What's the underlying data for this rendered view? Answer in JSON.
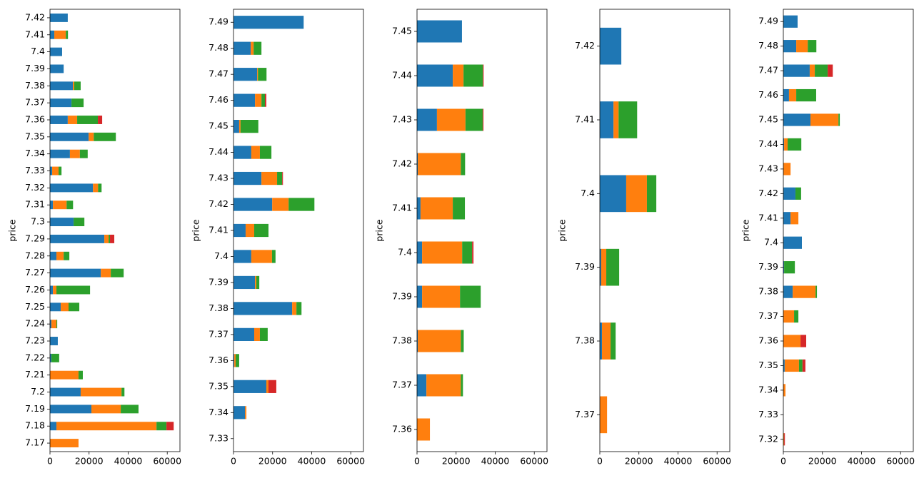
{
  "chart_data": [
    {
      "type": "bar",
      "orientation": "horizontal",
      "stacked": true,
      "ylabel": "price",
      "categories": [
        "7.42",
        "7.41",
        "7.4",
        "7.39",
        "7.38",
        "7.37",
        "7.36",
        "7.35",
        "7.34",
        "7.33",
        "7.32",
        "7.31",
        "7.3",
        "7.29",
        "7.28",
        "7.27",
        "7.26",
        "7.25",
        "7.24",
        "7.23",
        "7.22",
        "7.21",
        "7.2",
        "7.19",
        "7.18",
        "7.17"
      ],
      "series": [
        {
          "color": "#1f77b4",
          "values": [
            9100,
            2200,
            6200,
            7000,
            11700,
            11000,
            9100,
            19800,
            10200,
            1100,
            22000,
            1500,
            12100,
            27800,
            3300,
            26000,
            1500,
            5500,
            700,
            4000,
            700,
            0,
            15700,
            21200,
            3300,
            0
          ]
        },
        {
          "color": "#ff7f0e",
          "values": [
            0,
            5900,
            0,
            0,
            700,
            0,
            4800,
            2600,
            5100,
            3300,
            2600,
            7000,
            0,
            2200,
            3700,
            5100,
            1800,
            4000,
            2600,
            0,
            0,
            14600,
            20900,
            15000,
            51200,
            14600
          ]
        },
        {
          "color": "#2ca02c",
          "values": [
            0,
            1100,
            0,
            0,
            3300,
            6200,
            10600,
            11300,
            4000,
            1500,
            1800,
            3300,
            5500,
            700,
            2900,
            6600,
            17200,
            5500,
            400,
            0,
            4000,
            2200,
            1500,
            9100,
            5100,
            0
          ]
        },
        {
          "color": "#d62728",
          "values": [
            0,
            0,
            0,
            0,
            0,
            0,
            2200,
            0,
            0,
            0,
            0,
            0,
            0,
            2200,
            0,
            0,
            0,
            0,
            0,
            0,
            0,
            0,
            0,
            0,
            3700,
            0
          ]
        }
      ],
      "xlim": [
        0,
        66500
      ],
      "xticks": [
        0,
        20000,
        40000,
        60000
      ]
    },
    {
      "type": "bar",
      "orientation": "horizontal",
      "stacked": true,
      "ylabel": "price",
      "categories": [
        "7.49",
        "7.48",
        "7.47",
        "7.46",
        "7.45",
        "7.44",
        "7.43",
        "7.42",
        "7.41",
        "7.4",
        "7.39",
        "7.38",
        "7.37",
        "7.36",
        "7.35",
        "7.34",
        "7.33"
      ],
      "series": [
        {
          "color": "#1f77b4",
          "values": [
            35900,
            8800,
            12100,
            11000,
            2900,
            9100,
            14300,
            19800,
            6200,
            9100,
            11000,
            30000,
            10600,
            400,
            16800,
            5900,
            0
          ]
        },
        {
          "color": "#ff7f0e",
          "values": [
            0,
            1500,
            400,
            3300,
            700,
            4400,
            8000,
            8400,
            4400,
            10600,
            700,
            2200,
            2900,
            700,
            1100,
            700,
            0
          ]
        },
        {
          "color": "#2ca02c",
          "values": [
            0,
            4000,
            4400,
            1800,
            9100,
            5900,
            2600,
            13200,
            7300,
            1800,
            1500,
            2600,
            4000,
            1800,
            0,
            0,
            0
          ]
        },
        {
          "color": "#d62728",
          "values": [
            0,
            0,
            0,
            700,
            0,
            0,
            400,
            0,
            0,
            0,
            0,
            0,
            0,
            0,
            4000,
            0,
            0
          ]
        }
      ],
      "xlim": [
        0,
        66500
      ],
      "xticks": [
        0,
        20000,
        40000,
        60000
      ]
    },
    {
      "type": "bar",
      "orientation": "horizontal",
      "stacked": true,
      "ylabel": "price",
      "categories": [
        "7.45",
        "7.44",
        "7.43",
        "7.42",
        "7.41",
        "7.4",
        "7.39",
        "7.38",
        "7.37",
        "7.36"
      ],
      "series": [
        {
          "color": "#1f77b4",
          "values": [
            23000,
            18300,
            10200,
            400,
            1800,
            2600,
            2600,
            400,
            4800,
            0
          ]
        },
        {
          "color": "#ff7f0e",
          "values": [
            0,
            5500,
            14600,
            22000,
            16500,
            20500,
            19400,
            22000,
            17600,
            6600
          ]
        },
        {
          "color": "#2ca02c",
          "values": [
            0,
            9900,
            8800,
            2200,
            6200,
            5100,
            10600,
            1500,
            1100,
            0
          ]
        },
        {
          "color": "#d62728",
          "values": [
            0,
            400,
            400,
            0,
            0,
            700,
            0,
            0,
            0,
            0
          ]
        }
      ],
      "xlim": [
        0,
        66500
      ],
      "xticks": [
        0,
        20000,
        40000,
        60000
      ]
    },
    {
      "type": "bar",
      "orientation": "horizontal",
      "stacked": true,
      "ylabel": "price",
      "categories": [
        "7.42",
        "7.41",
        "7.4",
        "7.39",
        "7.38",
        "7.37"
      ],
      "series": [
        {
          "color": "#1f77b4",
          "values": [
            11000,
            7000,
            13500,
            700,
            1100,
            0
          ]
        },
        {
          "color": "#ff7f0e",
          "values": [
            0,
            2600,
            10600,
            2600,
            4400,
            3700
          ]
        },
        {
          "color": "#2ca02c",
          "values": [
            0,
            9500,
            4800,
            6600,
            2600,
            0
          ]
        },
        {
          "color": "#d62728",
          "values": [
            0,
            0,
            0,
            0,
            0,
            0
          ]
        }
      ],
      "xlim": [
        0,
        66500
      ],
      "xticks": [
        0,
        20000,
        40000,
        60000
      ]
    },
    {
      "type": "bar",
      "orientation": "horizontal",
      "stacked": true,
      "ylabel": "price",
      "categories": [
        "7.49",
        "7.48",
        "7.47",
        "7.46",
        "7.45",
        "7.44",
        "7.43",
        "7.42",
        "7.41",
        "7.4",
        "7.39",
        "7.38",
        "7.37",
        "7.36",
        "7.35",
        "7.34",
        "7.33",
        "7.32"
      ],
      "series": [
        {
          "color": "#1f77b4",
          "values": [
            7300,
            6600,
            13500,
            2900,
            13900,
            400,
            0,
            6200,
            3700,
            9500,
            400,
            4800,
            0,
            0,
            700,
            0,
            0,
            0
          ]
        },
        {
          "color": "#ff7f0e",
          "values": [
            0,
            5900,
            2600,
            3700,
            14300,
            1800,
            3700,
            0,
            4000,
            0,
            0,
            11700,
            5500,
            8800,
            7300,
            1100,
            0,
            400
          ]
        },
        {
          "color": "#2ca02c",
          "values": [
            0,
            4400,
            6600,
            10200,
            700,
            7000,
            0,
            2900,
            0,
            0,
            5500,
            700,
            2200,
            0,
            1800,
            0,
            0,
            0
          ]
        },
        {
          "color": "#d62728",
          "values": [
            0,
            0,
            2600,
            0,
            0,
            0,
            0,
            0,
            0,
            0,
            0,
            0,
            0,
            2900,
            1500,
            0,
            0,
            400
          ]
        }
      ],
      "xlim": [
        0,
        66500
      ],
      "xticks": [
        0,
        20000,
        40000,
        60000
      ]
    }
  ]
}
